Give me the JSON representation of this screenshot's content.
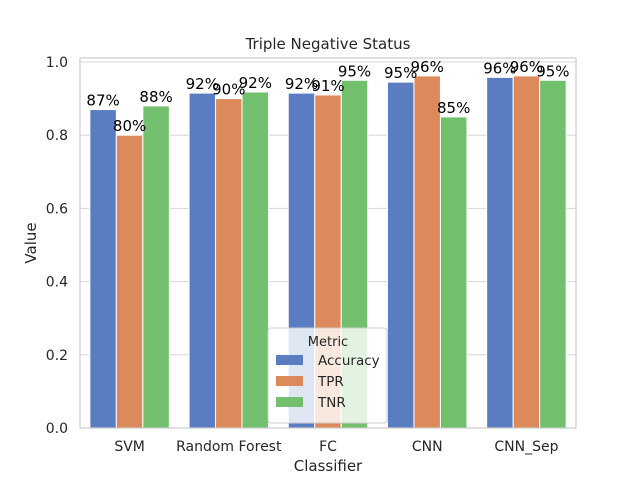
{
  "chart_data": {
    "type": "bar",
    "title": "Triple Negative Status",
    "xlabel": "Classifier",
    "ylabel": "Value",
    "ylim": [
      0,
      1.0
    ],
    "yticks": [
      "0.0",
      "0.2",
      "0.4",
      "0.6",
      "0.8",
      "1.0"
    ],
    "categories": [
      "SVM",
      "Random Forest",
      "FC",
      "CNN",
      "CNN_Sep"
    ],
    "series": [
      {
        "name": "Accuracy",
        "color": "#5a7dc2",
        "values": [
          0.87,
          0.915,
          0.915,
          0.945,
          0.958
        ],
        "labels": [
          "87%",
          "92%",
          "92%",
          "95%",
          "96%"
        ]
      },
      {
        "name": "TPR",
        "color": "#dc8a5c",
        "values": [
          0.8,
          0.9,
          0.91,
          0.962,
          0.962
        ],
        "labels": [
          "80%",
          "90%",
          "91%",
          "96%",
          "96%"
        ]
      },
      {
        "name": "TNR",
        "color": "#72c06e",
        "values": [
          0.88,
          0.918,
          0.95,
          0.85,
          0.95
        ],
        "labels": [
          "88%",
          "92%",
          "95%",
          "85%",
          "95%"
        ]
      }
    ],
    "grid": "horizontal",
    "legend": {
      "title": "Metric",
      "placement": "bottom-center"
    }
  }
}
